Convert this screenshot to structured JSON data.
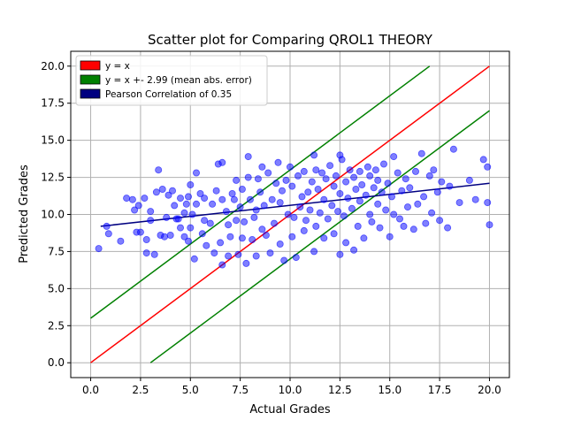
{
  "chart_data": {
    "type": "scatter",
    "title": "Scatter plot for Comparing QROL1 THEORY",
    "xlabel": "Actual Grades",
    "ylabel": "Predicted Grades",
    "xlim": [
      -1.0,
      21.0
    ],
    "ylim": [
      -1.0,
      21.0
    ],
    "xticks": [
      0.0,
      2.5,
      5.0,
      7.5,
      10.0,
      12.5,
      15.0,
      17.5,
      20.0
    ],
    "xtick_labels": [
      "0.0",
      "2.5",
      "5.0",
      "7.5",
      "10.0",
      "12.5",
      "15.0",
      "17.5",
      "20.0"
    ],
    "yticks": [
      0.0,
      2.5,
      5.0,
      7.5,
      10.0,
      12.5,
      15.0,
      17.5,
      20.0
    ],
    "ytick_labels": [
      "0.0",
      "2.5",
      "5.0",
      "7.5",
      "10.0",
      "12.5",
      "15.0",
      "17.5",
      "20.0"
    ],
    "grid": true,
    "legend_position": "top-left",
    "lines": [
      {
        "name": "y = x",
        "color": "#ff0000",
        "x": [
          0,
          20
        ],
        "y": [
          0,
          20
        ]
      },
      {
        "name": "y = x +- 2.99 (mean abs. error)",
        "color": "#008000",
        "x": [
          0,
          17
        ],
        "y": [
          3,
          20
        ]
      },
      {
        "name": "",
        "color": "#008000",
        "x": [
          3,
          20
        ],
        "y": [
          0,
          17
        ]
      },
      {
        "name": "Pearson Correlation of 0.35",
        "color": "#000080",
        "x": [
          0.5,
          20
        ],
        "y": [
          9.2,
          12.1
        ]
      }
    ],
    "legend": [
      {
        "label": "y = x",
        "color": "#ff0000"
      },
      {
        "label": "y = x +- 2.99 (mean abs. error)",
        "color": "#008000"
      },
      {
        "label": "Pearson Correlation of 0.35",
        "color": "#000080"
      }
    ],
    "scatter_color": "#0000ff",
    "points": [
      [
        0.4,
        7.7
      ],
      [
        0.8,
        9.2
      ],
      [
        0.9,
        8.7
      ],
      [
        1.5,
        8.2
      ],
      [
        1.8,
        11.1
      ],
      [
        2.1,
        11.0
      ],
      [
        2.2,
        10.3
      ],
      [
        2.3,
        8.8
      ],
      [
        2.4,
        10.6
      ],
      [
        2.5,
        8.8
      ],
      [
        2.7,
        11.1
      ],
      [
        2.8,
        7.4
      ],
      [
        2.8,
        8.3
      ],
      [
        3.0,
        9.6
      ],
      [
        3.0,
        10.2
      ],
      [
        3.2,
        7.3
      ],
      [
        3.3,
        11.5
      ],
      [
        3.4,
        13.0
      ],
      [
        3.6,
        11.7
      ],
      [
        3.7,
        8.5
      ],
      [
        3.8,
        9.8
      ],
      [
        3.9,
        11.3
      ],
      [
        4.0,
        8.6
      ],
      [
        4.1,
        11.6
      ],
      [
        4.2,
        10.6
      ],
      [
        4.4,
        9.7
      ],
      [
        4.5,
        11.1
      ],
      [
        4.5,
        9.1
      ],
      [
        4.7,
        10.1
      ],
      [
        4.7,
        8.5
      ],
      [
        4.8,
        10.7
      ],
      [
        4.9,
        8.2
      ],
      [
        4.9,
        11.2
      ],
      [
        5.0,
        9.1
      ],
      [
        5.0,
        12.0
      ],
      [
        5.1,
        10.0
      ],
      [
        5.2,
        7.0
      ],
      [
        5.3,
        10.7
      ],
      [
        5.3,
        12.8
      ],
      [
        5.5,
        11.4
      ],
      [
        5.6,
        8.7
      ],
      [
        5.7,
        11.1
      ],
      [
        5.7,
        9.6
      ],
      [
        5.8,
        7.9
      ],
      [
        6.0,
        9.4
      ],
      [
        6.1,
        10.7
      ],
      [
        6.2,
        7.4
      ],
      [
        6.3,
        11.6
      ],
      [
        6.4,
        13.4
      ],
      [
        6.5,
        8.1
      ],
      [
        6.6,
        11.0
      ],
      [
        6.6,
        13.5
      ],
      [
        6.6,
        6.6
      ],
      [
        6.8,
        10.2
      ],
      [
        6.9,
        9.3
      ],
      [
        7.0,
        8.5
      ],
      [
        7.1,
        11.4
      ],
      [
        7.2,
        11.0
      ],
      [
        7.3,
        9.6
      ],
      [
        7.3,
        12.3
      ],
      [
        7.4,
        7.3
      ],
      [
        7.5,
        10.5
      ],
      [
        7.6,
        8.4
      ],
      [
        7.6,
        11.7
      ],
      [
        7.7,
        9.5
      ],
      [
        7.8,
        6.7
      ],
      [
        7.9,
        12.5
      ],
      [
        8.0,
        11.0
      ],
      [
        8.1,
        8.3
      ],
      [
        8.2,
        9.8
      ],
      [
        8.3,
        10.3
      ],
      [
        8.3,
        7.2
      ],
      [
        8.4,
        12.4
      ],
      [
        8.5,
        11.5
      ],
      [
        8.6,
        9.0
      ],
      [
        8.6,
        13.2
      ],
      [
        8.7,
        10.6
      ],
      [
        8.8,
        8.6
      ],
      [
        8.9,
        12.8
      ],
      [
        9.0,
        7.4
      ],
      [
        9.1,
        11.0
      ],
      [
        9.2,
        9.4
      ],
      [
        9.3,
        12.1
      ],
      [
        9.4,
        13.5
      ],
      [
        9.5,
        8.0
      ],
      [
        9.5,
        10.8
      ],
      [
        9.6,
        11.6
      ],
      [
        9.7,
        6.9
      ],
      [
        9.8,
        12.3
      ],
      [
        9.9,
        10.0
      ],
      [
        10.0,
        13.2
      ],
      [
        10.1,
        8.5
      ],
      [
        10.1,
        11.9
      ],
      [
        10.2,
        9.8
      ],
      [
        10.3,
        7.1
      ],
      [
        10.4,
        12.6
      ],
      [
        10.5,
        10.5
      ],
      [
        10.6,
        11.2
      ],
      [
        10.7,
        8.9
      ],
      [
        10.7,
        12.9
      ],
      [
        10.8,
        9.6
      ],
      [
        10.9,
        11.5
      ],
      [
        11.0,
        10.3
      ],
      [
        11.1,
        12.2
      ],
      [
        11.2,
        7.5
      ],
      [
        11.3,
        13.0
      ],
      [
        11.3,
        9.2
      ],
      [
        11.4,
        11.7
      ],
      [
        11.5,
        10.1
      ],
      [
        11.6,
        12.8
      ],
      [
        11.7,
        8.4
      ],
      [
        11.7,
        11.0
      ],
      [
        11.8,
        12.4
      ],
      [
        11.9,
        9.7
      ],
      [
        12.0,
        13.3
      ],
      [
        12.1,
        10.6
      ],
      [
        12.2,
        11.9
      ],
      [
        12.2,
        8.7
      ],
      [
        12.3,
        12.6
      ],
      [
        12.4,
        10.2
      ],
      [
        12.5,
        11.4
      ],
      [
        12.5,
        7.3
      ],
      [
        12.6,
        13.7
      ],
      [
        12.7,
        9.9
      ],
      [
        12.8,
        12.2
      ],
      [
        12.8,
        8.1
      ],
      [
        12.9,
        11.1
      ],
      [
        13.0,
        13.0
      ],
      [
        13.1,
        10.4
      ],
      [
        13.2,
        12.5
      ],
      [
        13.2,
        7.6
      ],
      [
        13.3,
        11.7
      ],
      [
        13.4,
        9.2
      ],
      [
        13.5,
        12.9
      ],
      [
        13.5,
        10.9
      ],
      [
        13.6,
        12.0
      ],
      [
        13.7,
        8.4
      ],
      [
        13.8,
        11.3
      ],
      [
        13.9,
        13.2
      ],
      [
        14.0,
        10.0
      ],
      [
        14.0,
        12.6
      ],
      [
        14.1,
        9.5
      ],
      [
        14.2,
        11.8
      ],
      [
        14.3,
        13.0
      ],
      [
        14.4,
        10.7
      ],
      [
        14.4,
        12.3
      ],
      [
        14.5,
        9.1
      ],
      [
        14.6,
        11.5
      ],
      [
        14.7,
        13.4
      ],
      [
        14.8,
        10.3
      ],
      [
        14.9,
        12.1
      ],
      [
        15.0,
        8.5
      ],
      [
        15.1,
        11.2
      ],
      [
        15.2,
        13.9
      ],
      [
        15.2,
        10.0
      ],
      [
        15.4,
        12.8
      ],
      [
        15.5,
        9.7
      ],
      [
        15.6,
        11.6
      ],
      [
        15.7,
        9.2
      ],
      [
        15.8,
        12.4
      ],
      [
        15.9,
        10.5
      ],
      [
        16.0,
        11.8
      ],
      [
        16.2,
        9.0
      ],
      [
        16.3,
        12.9
      ],
      [
        16.4,
        10.7
      ],
      [
        16.6,
        14.1
      ],
      [
        16.7,
        11.2
      ],
      [
        16.8,
        9.4
      ],
      [
        17.0,
        12.6
      ],
      [
        17.1,
        10.1
      ],
      [
        17.2,
        13.0
      ],
      [
        17.4,
        11.5
      ],
      [
        17.5,
        9.6
      ],
      [
        17.6,
        12.2
      ],
      [
        17.9,
        9.1
      ],
      [
        18.0,
        11.9
      ],
      [
        18.2,
        14.4
      ],
      [
        18.5,
        10.8
      ],
      [
        19.0,
        12.3
      ],
      [
        19.3,
        11.0
      ],
      [
        19.7,
        13.7
      ],
      [
        19.9,
        13.2
      ],
      [
        19.9,
        10.8
      ],
      [
        20.0,
        9.3
      ],
      [
        7.9,
        13.9
      ],
      [
        11.2,
        14.0
      ],
      [
        12.5,
        14.0
      ],
      [
        3.5,
        8.6
      ],
      [
        4.3,
        9.7
      ],
      [
        6.9,
        7.2
      ]
    ]
  }
}
